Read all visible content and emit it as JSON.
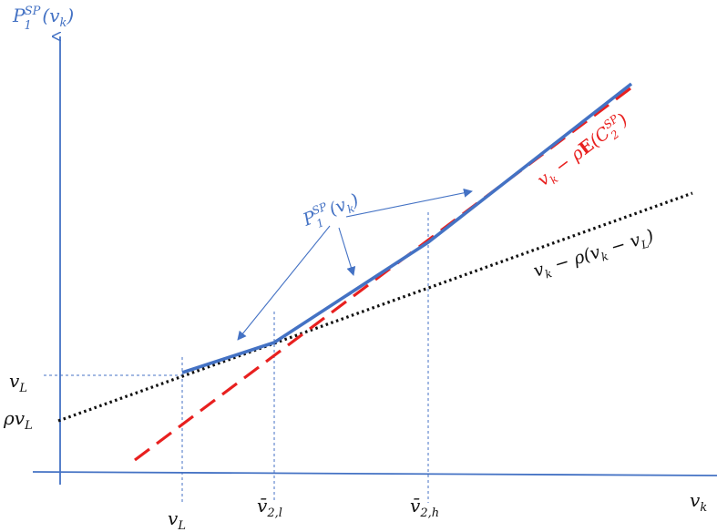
{
  "colors": {
    "axis": "#4472C4",
    "p1_curve": "#4472C4",
    "red_line": "#E8201F",
    "black_line": "#111111",
    "guide": "#4472C4",
    "text": "#111111"
  },
  "labels": {
    "y_axis_title": {
      "main": "P",
      "sub": "1",
      "sup": "SP",
      "rest": "(v",
      "rest_sub": "k",
      "close": ")"
    },
    "x_axis_title": {
      "main": "v",
      "sub": "k"
    },
    "y_tick_vL": {
      "main": "v",
      "sub": "L"
    },
    "y_tick_rho_vL": {
      "pre": "ρv",
      "sub": "L"
    },
    "x_tick_vL": {
      "main": "v",
      "sub": "L"
    },
    "x_tick_v2l": {
      "main": "v̄",
      "sub": "2,l"
    },
    "x_tick_v2h": {
      "main": "v̄",
      "sub": "2,h"
    },
    "curve_callout": {
      "main": "P",
      "sub": "1",
      "sup": "SP",
      "rest": "(v",
      "rest_sub": "k",
      "close": ")"
    },
    "red_line_label": {
      "a": "v",
      "a_sub": "k",
      "b": " − ρ",
      "E": "E",
      "c": "(C",
      "c_sub": "2",
      "c_sup": "SP",
      "close": ")"
    },
    "black_line_label": {
      "a": "v",
      "a_sub": "k",
      "b": " − ρ(v",
      "b_sub": "k",
      "c": " − v",
      "c_sub": "L",
      "close": ")"
    }
  }
}
